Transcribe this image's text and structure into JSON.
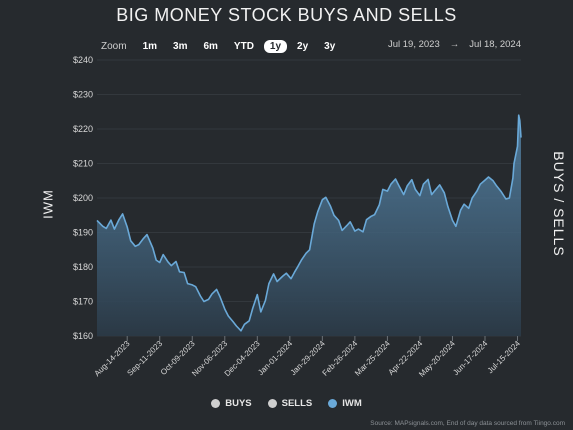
{
  "title": "BIG MONEY STOCK BUYS AND SELLS",
  "zoom": {
    "label": "Zoom",
    "options": [
      "1m",
      "3m",
      "6m",
      "YTD",
      "1y",
      "2y",
      "3y"
    ],
    "active": "1y"
  },
  "date_range": {
    "from": "Jul 19, 2023",
    "arrow": "→",
    "to": "Jul 18, 2024"
  },
  "legend": [
    {
      "label": "BUYS",
      "color": "#cfcfcf"
    },
    {
      "label": "SELLS",
      "color": "#cfcfcf"
    },
    {
      "label": "IWM",
      "color": "#6aa9d8"
    }
  ],
  "source": "Source: MAPsignals.com, End of day data sourced from Tiingo.com",
  "colors": {
    "background": "#262a2e",
    "line": "#6aa9d8",
    "grid": "#33383d"
  },
  "chart_data": {
    "type": "area",
    "ylabel": "IWM",
    "ylabel_right": "BUYS / SELLS",
    "ylim": [
      160,
      240
    ],
    "yticks": [
      160,
      170,
      180,
      190,
      200,
      210,
      220,
      230,
      240
    ],
    "ytick_labels": [
      "$160",
      "$170",
      "$180",
      "$190",
      "$200",
      "$210",
      "$220",
      "$230",
      "$240"
    ],
    "xlim": [
      "2023-07-19",
      "2024-07-18"
    ],
    "xticks": [
      "2023-08-14",
      "2023-09-11",
      "2023-10-09",
      "2023-11-06",
      "2023-12-04",
      "2024-01-01",
      "2024-01-29",
      "2024-02-26",
      "2024-03-25",
      "2024-04-22",
      "2024-05-20",
      "2024-06-17",
      "2024-07-15"
    ],
    "xtick_labels": [
      "Aug-14-2023",
      "Sep-11-2023",
      "Oct-09-2023",
      "Nov-06-2023",
      "Dec-04-2023",
      "Jan-01-2024",
      "Jan-29-2024",
      "Feb-26-2024",
      "Mar-25-2024",
      "Apr-22-2024",
      "May-20-2024",
      "Jun-17-2024",
      "Jul-15-2024"
    ],
    "grid": true,
    "legend_position": "bottom",
    "series": [
      {
        "name": "IWM",
        "points": [
          [
            "2023-07-19",
            193.5
          ],
          [
            "2023-07-24",
            191.8
          ],
          [
            "2023-07-27",
            191.2
          ],
          [
            "2023-07-31",
            193.6
          ],
          [
            "2023-08-03",
            191.0
          ],
          [
            "2023-08-07",
            193.8
          ],
          [
            "2023-08-10",
            195.4
          ],
          [
            "2023-08-14",
            191.6
          ],
          [
            "2023-08-17",
            187.6
          ],
          [
            "2023-08-21",
            186.0
          ],
          [
            "2023-08-24",
            186.5
          ],
          [
            "2023-08-28",
            188.3
          ],
          [
            "2023-08-31",
            189.4
          ],
          [
            "2023-09-05",
            185.5
          ],
          [
            "2023-09-08",
            182.0
          ],
          [
            "2023-09-11",
            181.3
          ],
          [
            "2023-09-14",
            183.6
          ],
          [
            "2023-09-18",
            181.5
          ],
          [
            "2023-09-21",
            180.4
          ],
          [
            "2023-09-25",
            181.6
          ],
          [
            "2023-09-28",
            178.6
          ],
          [
            "2023-10-02",
            178.4
          ],
          [
            "2023-10-05",
            175.2
          ],
          [
            "2023-10-09",
            174.8
          ],
          [
            "2023-10-12",
            174.3
          ],
          [
            "2023-10-16",
            171.6
          ],
          [
            "2023-10-19",
            170.0
          ],
          [
            "2023-10-23",
            170.6
          ],
          [
            "2023-10-26",
            172.2
          ],
          [
            "2023-10-30",
            173.5
          ],
          [
            "2023-11-02",
            171.3
          ],
          [
            "2023-11-06",
            167.8
          ],
          [
            "2023-11-09",
            165.8
          ],
          [
            "2023-11-13",
            164.2
          ],
          [
            "2023-11-16",
            162.9
          ],
          [
            "2023-11-20",
            161.5
          ],
          [
            "2023-11-23",
            163.4
          ],
          [
            "2023-11-27",
            164.4
          ],
          [
            "2023-11-30",
            168.0
          ],
          [
            "2023-12-04",
            172.0
          ],
          [
            "2023-12-07",
            167.0
          ],
          [
            "2023-12-11",
            170.3
          ],
          [
            "2023-12-14",
            175.2
          ],
          [
            "2023-12-18",
            178.0
          ],
          [
            "2023-12-21",
            175.8
          ],
          [
            "2023-12-26",
            177.4
          ],
          [
            "2023-12-29",
            178.2
          ],
          [
            "2024-01-02",
            176.6
          ],
          [
            "2024-01-05",
            178.5
          ],
          [
            "2024-01-08",
            180.2
          ],
          [
            "2024-01-11",
            182.0
          ],
          [
            "2024-01-15",
            184.0
          ],
          [
            "2024-01-18",
            185.0
          ],
          [
            "2024-01-22",
            192.5
          ],
          [
            "2024-01-25",
            196.0
          ],
          [
            "2024-01-29",
            199.5
          ],
          [
            "2024-02-01",
            200.2
          ],
          [
            "2024-02-05",
            197.6
          ],
          [
            "2024-02-08",
            195.0
          ],
          [
            "2024-02-12",
            193.5
          ],
          [
            "2024-02-15",
            190.6
          ],
          [
            "2024-02-19",
            192.0
          ],
          [
            "2024-02-22",
            193.1
          ],
          [
            "2024-02-26",
            190.4
          ],
          [
            "2024-02-29",
            191.0
          ],
          [
            "2024-03-04",
            190.2
          ],
          [
            "2024-03-07",
            193.7
          ],
          [
            "2024-03-11",
            194.7
          ],
          [
            "2024-03-14",
            195.2
          ],
          [
            "2024-03-18",
            198.0
          ],
          [
            "2024-03-21",
            202.5
          ],
          [
            "2024-03-25",
            202.0
          ],
          [
            "2024-03-28",
            204.0
          ],
          [
            "2024-04-01",
            205.5
          ],
          [
            "2024-04-04",
            203.5
          ],
          [
            "2024-04-08",
            201.0
          ],
          [
            "2024-04-11",
            203.5
          ],
          [
            "2024-04-15",
            205.3
          ],
          [
            "2024-04-18",
            202.5
          ],
          [
            "2024-04-22",
            200.7
          ],
          [
            "2024-04-25",
            204.0
          ],
          [
            "2024-04-29",
            205.4
          ],
          [
            "2024-05-02",
            201.0
          ],
          [
            "2024-05-06",
            202.6
          ],
          [
            "2024-05-09",
            203.8
          ],
          [
            "2024-05-13",
            201.5
          ],
          [
            "2024-05-16",
            197.6
          ],
          [
            "2024-05-20",
            193.5
          ],
          [
            "2024-05-23",
            191.8
          ],
          [
            "2024-05-27",
            196.5
          ],
          [
            "2024-05-30",
            198.2
          ],
          [
            "2024-06-03",
            197.0
          ],
          [
            "2024-06-06",
            200.0
          ],
          [
            "2024-06-10",
            202.0
          ],
          [
            "2024-06-13",
            204.0
          ],
          [
            "2024-06-17",
            205.2
          ],
          [
            "2024-06-20",
            206.1
          ],
          [
            "2024-06-24",
            205.0
          ],
          [
            "2024-06-27",
            203.5
          ],
          [
            "2024-07-01",
            201.8
          ],
          [
            "2024-07-05",
            199.7
          ],
          [
            "2024-07-08",
            200.0
          ],
          [
            "2024-07-11",
            205.8
          ],
          [
            "2024-07-12",
            210.0
          ],
          [
            "2024-07-15",
            215.0
          ],
          [
            "2024-07-16",
            224.0
          ],
          [
            "2024-07-17",
            222.5
          ],
          [
            "2024-07-18",
            217.5
          ]
        ]
      }
    ]
  }
}
